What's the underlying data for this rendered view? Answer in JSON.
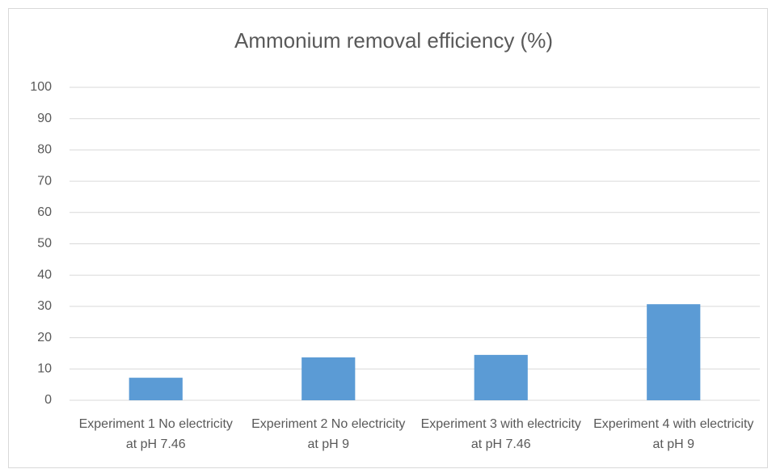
{
  "chart_data": {
    "type": "bar",
    "title": "Ammonium removal efficiency (%)",
    "categories": [
      "Experiment 1 No electricity at pH 7.46",
      "Experiment 2 No electricity at pH 9",
      "Experiment 3 with electricity at pH 7.46",
      "Experiment 4 with electricity at pH 9"
    ],
    "values": [
      7.2,
      13.7,
      14.5,
      30.7
    ],
    "color": "#5b9bd5",
    "ylim": [
      0,
      100
    ],
    "yticks": [
      0,
      10,
      20,
      30,
      40,
      50,
      60,
      70,
      80,
      90,
      100
    ],
    "grid": true
  }
}
